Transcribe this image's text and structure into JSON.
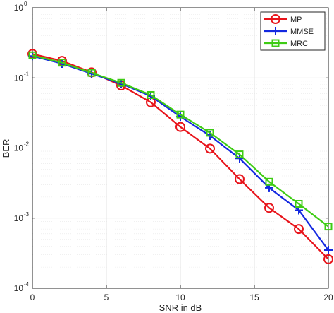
{
  "chart_data": {
    "type": "line",
    "title": "",
    "xlabel": "SNR in dB",
    "ylabel": "BER",
    "xlim": [
      0,
      20
    ],
    "ylim": [
      0.0001,
      1
    ],
    "y_scale": "log",
    "grid": true,
    "legend_position": "top-right",
    "x_ticks": [
      "0",
      "5",
      "10",
      "15",
      "20"
    ],
    "y_ticks": [
      {
        "base": "10",
        "exp": "-4"
      },
      {
        "base": "10",
        "exp": "-3"
      },
      {
        "base": "10",
        "exp": "-2"
      },
      {
        "base": "10",
        "exp": "-1"
      },
      {
        "base": "10",
        "exp": "0"
      }
    ],
    "x": [
      0,
      2,
      4,
      6,
      8,
      10,
      12,
      14,
      16,
      18,
      20
    ],
    "series": [
      {
        "name": "MP",
        "color": "#e8141b",
        "marker": "circle",
        "values": [
          0.22,
          0.175,
          0.12,
          0.078,
          0.045,
          0.02,
          0.0098,
          0.0036,
          0.0014,
          0.0007,
          0.00026
        ]
      },
      {
        "name": "MMSE",
        "color": "#1328e0",
        "marker": "plus",
        "values": [
          0.205,
          0.16,
          0.115,
          0.083,
          0.055,
          0.028,
          0.015,
          0.0071,
          0.0027,
          0.0013,
          0.00035
        ]
      },
      {
        "name": "MRC",
        "color": "#3ecc14",
        "marker": "square",
        "values": [
          0.21,
          0.165,
          0.118,
          0.085,
          0.057,
          0.03,
          0.0165,
          0.0081,
          0.0033,
          0.0016,
          0.00076
        ]
      }
    ]
  }
}
